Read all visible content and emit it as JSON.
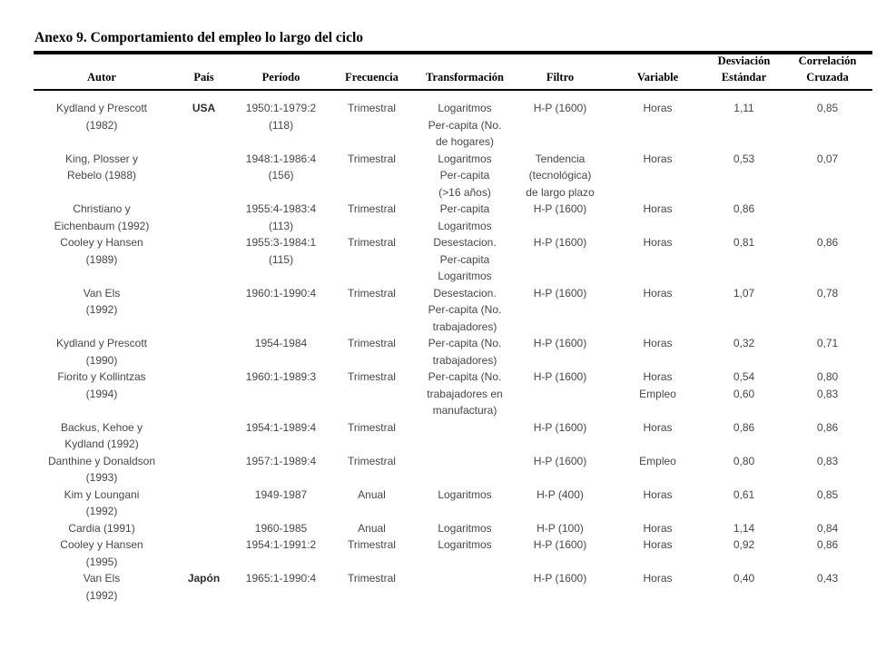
{
  "page": {
    "title": "Anexo 9. Comportamiento del empleo lo largo del ciclo"
  },
  "table": {
    "columns": [
      {
        "key": "autor",
        "label_lines": [
          "Autor"
        ]
      },
      {
        "key": "pais",
        "label_lines": [
          "País"
        ]
      },
      {
        "key": "periodo",
        "label_lines": [
          "Período"
        ]
      },
      {
        "key": "frecuencia",
        "label_lines": [
          "Frecuencia"
        ]
      },
      {
        "key": "transformacion",
        "label_lines": [
          "Transformación"
        ]
      },
      {
        "key": "filtro",
        "label_lines": [
          "Filtro"
        ]
      },
      {
        "key": "variable",
        "label_lines": [
          "Variable"
        ]
      },
      {
        "key": "desviacion",
        "label_lines": [
          "Desviación",
          "Estándar"
        ]
      },
      {
        "key": "correlacion",
        "label_lines": [
          "Correlación",
          "Cruzada"
        ]
      }
    ],
    "rows": [
      {
        "cells": [
          [
            "Kydland y Prescott",
            "(1982)"
          ],
          [
            "USA"
          ],
          [
            "1950:1-1979:2",
            "(118)"
          ],
          [
            "Trimestral"
          ],
          [
            "Logaritmos",
            "Per-capita (No.",
            "de hogares)"
          ],
          [
            "H-P (1600)"
          ],
          [
            "Horas"
          ],
          [
            "1,11"
          ],
          [
            "0,85"
          ]
        ]
      },
      {
        "cells": [
          [
            "King, Plosser y",
            "Rebelo (1988)"
          ],
          [],
          [
            "1948:1-1986:4",
            "(156)"
          ],
          [
            "Trimestral"
          ],
          [
            "Logaritmos",
            "Per-capita",
            "(>16 años)"
          ],
          [
            "Tendencia",
            "(tecnológica)",
            "de largo plazo"
          ],
          [
            "Horas"
          ],
          [
            "0,53"
          ],
          [
            "0,07"
          ]
        ]
      },
      {
        "cells": [
          [
            "Christiano y",
            "Eichenbaum (1992)"
          ],
          [],
          [
            "1955:4-1983:4",
            "(113)"
          ],
          [
            "Trimestral"
          ],
          [
            "Per-capita",
            "Logaritmos"
          ],
          [
            "H-P (1600)"
          ],
          [
            "Horas"
          ],
          [
            "0,86"
          ],
          []
        ]
      },
      {
        "cells": [
          [
            "Cooley y Hansen",
            "(1989)"
          ],
          [],
          [
            "1955:3-1984:1",
            "(115)"
          ],
          [
            "Trimestral"
          ],
          [
            "Desestacion.",
            "Per-capita",
            "Logaritmos"
          ],
          [
            "H-P (1600)"
          ],
          [
            "Horas"
          ],
          [
            "0,81"
          ],
          [
            "0,86"
          ]
        ]
      },
      {
        "cells": [
          [
            "Van Els",
            "(1992)"
          ],
          [],
          [
            "1960:1-1990:4"
          ],
          [
            "Trimestral"
          ],
          [
            "Desestacion.",
            "Per-capita (No.",
            "trabajadores)"
          ],
          [
            "H-P (1600)"
          ],
          [
            "Horas"
          ],
          [
            "1,07"
          ],
          [
            "0,78"
          ]
        ]
      },
      {
        "cells": [
          [
            "Kydland y Prescott",
            "(1990)"
          ],
          [],
          [
            "1954-1984"
          ],
          [
            "Trimestral"
          ],
          [
            "Per-capita (No.",
            "trabajadores)"
          ],
          [
            "H-P (1600)"
          ],
          [
            "Horas"
          ],
          [
            "0,32"
          ],
          [
            "0,71"
          ]
        ]
      },
      {
        "cells": [
          [
            "Fiorito y Kollintzas",
            "(1994)"
          ],
          [],
          [
            "1960:1-1989:3"
          ],
          [
            "Trimestral"
          ],
          [
            "Per-capita (No.",
            "trabajadores en",
            "manufactura)"
          ],
          [
            "H-P (1600)"
          ],
          [
            "Horas",
            "Empleo"
          ],
          [
            "0,54",
            "0,60"
          ],
          [
            "0,80",
            "0,83"
          ]
        ]
      },
      {
        "cells": [
          [
            "Backus, Kehoe y",
            "Kydland  (1992)"
          ],
          [],
          [
            "1954:1-1989:4"
          ],
          [
            "Trimestral"
          ],
          [],
          [
            "H-P (1600)"
          ],
          [
            "Horas"
          ],
          [
            "0,86"
          ],
          [
            "0,86"
          ]
        ]
      },
      {
        "cells": [
          [
            "Danthine y Donaldson",
            "(1993)"
          ],
          [],
          [
            "1957:1-1989:4"
          ],
          [
            "Trimestral"
          ],
          [],
          [
            "H-P (1600)"
          ],
          [
            "Empleo"
          ],
          [
            "0,80"
          ],
          [
            "0,83"
          ]
        ]
      },
      {
        "cells": [
          [
            "Kim y Loungani",
            "(1992)"
          ],
          [],
          [
            "1949-1987"
          ],
          [
            "Anual"
          ],
          [
            "Logaritmos"
          ],
          [
            "H-P (400)"
          ],
          [
            "Horas"
          ],
          [
            "0,61"
          ],
          [
            "0,85"
          ]
        ]
      },
      {
        "cells": [
          [
            "Cardia (1991)"
          ],
          [],
          [
            "1960-1985"
          ],
          [
            "Anual"
          ],
          [
            "Logaritmos"
          ],
          [
            "H-P (100)"
          ],
          [
            "Horas"
          ],
          [
            "1,14"
          ],
          [
            "0,84"
          ]
        ]
      },
      {
        "cells": [
          [
            "Cooley y Hansen",
            "(1995)"
          ],
          [],
          [
            "1954:1-1991:2"
          ],
          [
            "Trimestral"
          ],
          [
            "Logaritmos"
          ],
          [
            "H-P (1600)"
          ],
          [
            "Horas"
          ],
          [
            "0,92"
          ],
          [
            "0,86"
          ]
        ]
      },
      {
        "cells": [
          [
            "Van Els",
            "(1992)"
          ],
          [
            "Japón"
          ],
          [
            "1965:1-1990:4"
          ],
          [
            "Trimestral"
          ],
          [],
          [
            "H-P (1600)"
          ],
          [
            "Horas"
          ],
          [
            "0,40"
          ],
          [
            "0,43"
          ]
        ]
      }
    ]
  }
}
